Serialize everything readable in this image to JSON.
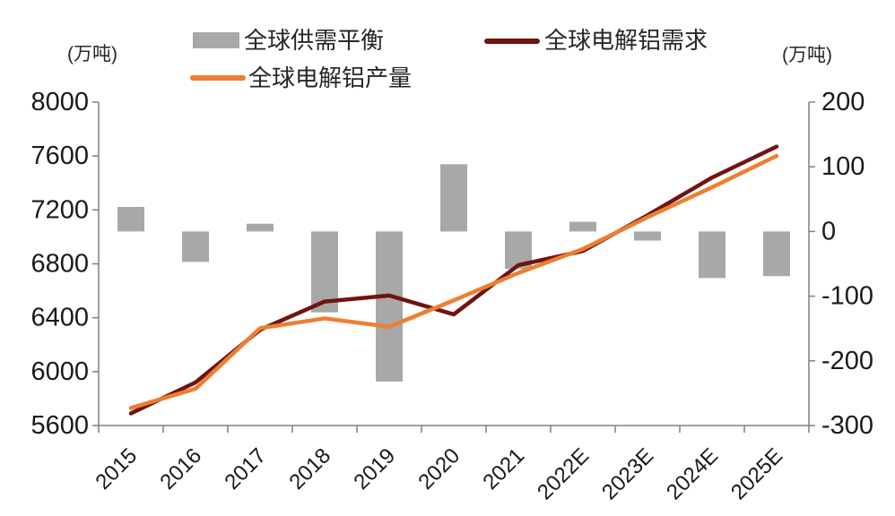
{
  "units": {
    "left": "(万吨)",
    "right": "(万吨)"
  },
  "legend": [
    {
      "label": "全球供需平衡",
      "marker": "bar",
      "color": "#a8a8a8"
    },
    {
      "label": "全球电解铝需求",
      "marker": "line",
      "color": "#6e1412"
    },
    {
      "label": "全球电解铝产量",
      "marker": "line",
      "color": "#ee7f30"
    }
  ],
  "chart_data": {
    "type": "bar+line",
    "categories": [
      "2015",
      "2016",
      "2017",
      "2018",
      "2019",
      "2020",
      "2021",
      "2022E",
      "2023E",
      "2024E",
      "2025E"
    ],
    "series": [
      {
        "name": "全球供需平衡",
        "type": "bar",
        "axis": "right",
        "color": "#a8a8a8",
        "values": [
          38,
          -47,
          12,
          -125,
          -232,
          104,
          -58,
          15,
          -14,
          -72,
          -69
        ]
      },
      {
        "name": "全球电解铝需求",
        "type": "line",
        "axis": "left",
        "color": "#6e1412",
        "values": [
          5690,
          5920,
          6310,
          6520,
          6565,
          6425,
          6790,
          6895,
          7160,
          7440,
          7670
        ]
      },
      {
        "name": "全球电解铝产量",
        "type": "line",
        "axis": "left",
        "color": "#ee7f30",
        "values": [
          5730,
          5873,
          6322,
          6395,
          6333,
          6529,
          6732,
          6910,
          7146,
          7368,
          7601
        ]
      }
    ],
    "left_axis": {
      "label": "(万吨)",
      "min": 5600,
      "max": 8000,
      "ticks": [
        8000,
        7600,
        7200,
        6800,
        6400,
        6000,
        5600
      ]
    },
    "right_axis": {
      "label": "(万吨)",
      "min": -300,
      "max": 200,
      "ticks": [
        200,
        100,
        0,
        -100,
        -200,
        -300
      ]
    },
    "grid": false,
    "legend_position": "top",
    "axis_color": "#808080"
  }
}
